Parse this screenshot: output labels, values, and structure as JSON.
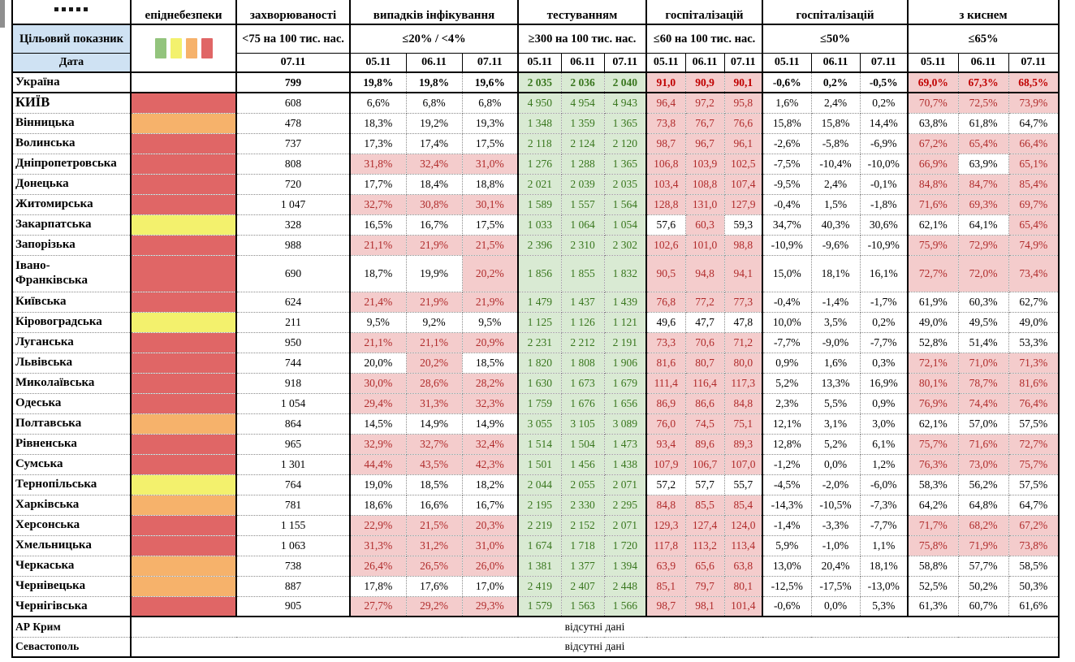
{
  "table": {
    "corner": {
      "target_label": "Цільовий показник",
      "date_label": "Дата"
    },
    "legend": {
      "group_label": "епіднебезпеки",
      "swatches": [
        {
          "name": "green",
          "color": "#93c47d"
        },
        {
          "name": "yellow",
          "color": "#f3f16d"
        },
        {
          "name": "orange",
          "color": "#f6b26b"
        },
        {
          "name": "red",
          "color": "#e06666"
        }
      ]
    },
    "danger_colors": {
      "red": "#e06666",
      "orange": "#f6b26b",
      "yellow": "#f3f16d"
    },
    "status_colors": {
      "alert_bg": "#f4cccc",
      "alert_text": "#b02b2b",
      "ok_bg": "#d9ead3",
      "ok_text": "#38761d",
      "header_bg": "#cfe2f3"
    },
    "groups": [
      {
        "key": "morbidity",
        "label": "захворюваності",
        "target": "<75 на 100 тис. нас.",
        "dates": [
          "07.11"
        ]
      },
      {
        "key": "infection",
        "label": "випадків інфікування",
        "target": "≤20% / <4%",
        "dates": [
          "05.11",
          "06.11",
          "07.11"
        ],
        "alert_above": 20
      },
      {
        "key": "testing",
        "label": "тестуванням",
        "target": "≥300 на 100 тис. нас.",
        "dates": [
          "05.11",
          "06.11",
          "07.11"
        ],
        "green": true
      },
      {
        "key": "hosp_rate",
        "label": "госпіталізацій",
        "target": "≤60 на 100 тис. нас.",
        "dates": [
          "05.11",
          "06.11",
          "07.11"
        ],
        "alert_above": 60
      },
      {
        "key": "hosp_change",
        "label": "госпіталізацій",
        "target": "≤50%",
        "dates": [
          "05.11",
          "06.11",
          "07.11"
        ]
      },
      {
        "key": "oxygen",
        "label": "з киснем",
        "target": "≤65%",
        "dates": [
          "05.11",
          "06.11",
          "07.11"
        ],
        "alert_above": 65
      }
    ],
    "no_data_text": "відсутні дані",
    "rows": [
      {
        "name": "Україна",
        "total": true,
        "danger": null,
        "morbidity": [
          "799"
        ],
        "infection": [
          "19,8%",
          "19,8%",
          "19,6%"
        ],
        "testing": [
          "2 035",
          "2 036",
          "2 040"
        ],
        "hosp_rate": [
          "91,0",
          "90,9",
          "90,1"
        ],
        "hosp_change": [
          "-0,6%",
          "0,2%",
          "-0,5%"
        ],
        "oxygen": [
          "69,0%",
          "67,3%",
          "68,5%"
        ]
      },
      {
        "name": "КИЇВ",
        "danger": "red",
        "morbidity": [
          "608"
        ],
        "infection": [
          "6,6%",
          "6,8%",
          "6,8%"
        ],
        "testing": [
          "4 950",
          "4 954",
          "4 943"
        ],
        "hosp_rate": [
          "96,4",
          "97,2",
          "95,8"
        ],
        "hosp_change": [
          "1,6%",
          "2,4%",
          "0,2%"
        ],
        "oxygen": [
          "70,7%",
          "72,5%",
          "73,9%"
        ]
      },
      {
        "name": "Вінницька",
        "danger": "orange",
        "morbidity": [
          "478"
        ],
        "infection": [
          "18,3%",
          "19,2%",
          "19,3%"
        ],
        "testing": [
          "1 348",
          "1 359",
          "1 365"
        ],
        "hosp_rate": [
          "73,8",
          "76,7",
          "76,6"
        ],
        "hosp_change": [
          "15,8%",
          "15,8%",
          "14,4%"
        ],
        "oxygen": [
          "63,8%",
          "61,8%",
          "64,7%"
        ]
      },
      {
        "name": "Волинська",
        "danger": "red",
        "morbidity": [
          "737"
        ],
        "infection": [
          "17,3%",
          "17,4%",
          "17,5%"
        ],
        "testing": [
          "2 118",
          "2 124",
          "2 120"
        ],
        "hosp_rate": [
          "98,7",
          "96,7",
          "96,1"
        ],
        "hosp_change": [
          "-2,6%",
          "-5,8%",
          "-6,9%"
        ],
        "oxygen": [
          "67,2%",
          "65,4%",
          "66,4%"
        ]
      },
      {
        "name": "Дніпропетровська",
        "danger": "red",
        "morbidity": [
          "808"
        ],
        "infection": [
          "31,8%",
          "32,4%",
          "31,0%"
        ],
        "testing": [
          "1 276",
          "1 288",
          "1 365"
        ],
        "hosp_rate": [
          "106,8",
          "103,9",
          "102,5"
        ],
        "hosp_change": [
          "-7,5%",
          "-10,4%",
          "-10,0%"
        ],
        "oxygen": [
          "66,9%",
          "63,9%",
          "65,1%"
        ]
      },
      {
        "name": "Донецька",
        "danger": "red",
        "morbidity": [
          "720"
        ],
        "infection": [
          "17,7%",
          "18,4%",
          "18,8%"
        ],
        "testing": [
          "2 021",
          "2 039",
          "2 035"
        ],
        "hosp_rate": [
          "103,4",
          "108,8",
          "107,4"
        ],
        "hosp_change": [
          "-9,5%",
          "2,4%",
          "-0,1%"
        ],
        "oxygen": [
          "84,8%",
          "84,7%",
          "85,4%"
        ]
      },
      {
        "name": "Житомирська",
        "danger": "red",
        "morbidity": [
          "1 047"
        ],
        "infection": [
          "32,7%",
          "30,8%",
          "30,1%"
        ],
        "testing": [
          "1 589",
          "1 557",
          "1 564"
        ],
        "hosp_rate": [
          "128,8",
          "131,0",
          "127,9"
        ],
        "hosp_change": [
          "-0,4%",
          "1,5%",
          "-1,8%"
        ],
        "oxygen": [
          "71,6%",
          "69,3%",
          "69,7%"
        ]
      },
      {
        "name": "Закарпатська",
        "danger": "yellow",
        "morbidity": [
          "328"
        ],
        "infection": [
          "16,5%",
          "16,7%",
          "17,5%"
        ],
        "testing": [
          "1 033",
          "1 064",
          "1 054"
        ],
        "hosp_rate": [
          "57,6",
          "60,3",
          "59,3"
        ],
        "hosp_change": [
          "34,7%",
          "40,3%",
          "30,6%"
        ],
        "oxygen": [
          "62,1%",
          "64,1%",
          "65,4%"
        ]
      },
      {
        "name": "Запорізька",
        "danger": "red",
        "morbidity": [
          "988"
        ],
        "infection": [
          "21,1%",
          "21,9%",
          "21,5%"
        ],
        "testing": [
          "2 396",
          "2 310",
          "2 302"
        ],
        "hosp_rate": [
          "102,6",
          "101,0",
          "98,8"
        ],
        "hosp_change": [
          "-10,9%",
          "-9,6%",
          "-10,9%"
        ],
        "oxygen": [
          "75,9%",
          "72,9%",
          "74,9%"
        ]
      },
      {
        "name": "Івано-\nФранківська",
        "tall": true,
        "danger": "red",
        "morbidity": [
          "690"
        ],
        "infection": [
          "18,7%",
          "19,9%",
          "20,2%"
        ],
        "testing": [
          "1 856",
          "1 855",
          "1 832"
        ],
        "hosp_rate": [
          "90,5",
          "94,8",
          "94,1"
        ],
        "hosp_change": [
          "15,0%",
          "18,1%",
          "16,1%"
        ],
        "oxygen": [
          "72,7%",
          "72,0%",
          "73,4%"
        ]
      },
      {
        "name": "Київська",
        "danger": "red",
        "morbidity": [
          "624"
        ],
        "infection": [
          "21,4%",
          "21,9%",
          "21,9%"
        ],
        "testing": [
          "1 479",
          "1 437",
          "1 439"
        ],
        "hosp_rate": [
          "76,8",
          "77,2",
          "77,3"
        ],
        "hosp_change": [
          "-0,4%",
          "-1,4%",
          "-1,7%"
        ],
        "oxygen": [
          "61,9%",
          "60,3%",
          "62,7%"
        ]
      },
      {
        "name": "Кіровоградська",
        "danger": "yellow",
        "morbidity": [
          "211"
        ],
        "infection": [
          "9,5%",
          "9,2%",
          "9,5%"
        ],
        "testing": [
          "1 125",
          "1 126",
          "1 121"
        ],
        "hosp_rate": [
          "49,6",
          "47,7",
          "47,8"
        ],
        "hosp_change": [
          "10,0%",
          "3,5%",
          "0,2%"
        ],
        "oxygen": [
          "49,0%",
          "49,5%",
          "49,0%"
        ]
      },
      {
        "name": "Луганська",
        "danger": "red",
        "morbidity": [
          "950"
        ],
        "infection": [
          "21,1%",
          "21,1%",
          "20,9%"
        ],
        "testing": [
          "2 231",
          "2 212",
          "2 191"
        ],
        "hosp_rate": [
          "73,3",
          "70,6",
          "71,2"
        ],
        "hosp_change": [
          "-7,7%",
          "-9,0%",
          "-7,7%"
        ],
        "oxygen": [
          "52,8%",
          "51,4%",
          "53,3%"
        ]
      },
      {
        "name": "Львівська",
        "danger": "red",
        "morbidity": [
          "744"
        ],
        "infection": [
          "20,0%",
          "20,2%",
          "18,5%"
        ],
        "testing": [
          "1 820",
          "1 808",
          "1 906"
        ],
        "hosp_rate": [
          "81,6",
          "80,7",
          "80,0"
        ],
        "hosp_change": [
          "0,9%",
          "1,6%",
          "0,3%"
        ],
        "oxygen": [
          "72,1%",
          "71,0%",
          "71,3%"
        ]
      },
      {
        "name": "Миколаївська",
        "danger": "red",
        "morbidity": [
          "918"
        ],
        "infection": [
          "30,0%",
          "28,6%",
          "28,2%"
        ],
        "testing": [
          "1 630",
          "1 673",
          "1 679"
        ],
        "hosp_rate": [
          "111,4",
          "116,4",
          "117,3"
        ],
        "hosp_change": [
          "5,2%",
          "13,3%",
          "16,9%"
        ],
        "oxygen": [
          "80,1%",
          "78,7%",
          "81,6%"
        ]
      },
      {
        "name": "Одеська",
        "danger": "red",
        "morbidity": [
          "1 054"
        ],
        "infection": [
          "29,4%",
          "31,3%",
          "32,3%"
        ],
        "testing": [
          "1 759",
          "1 676",
          "1 656"
        ],
        "hosp_rate": [
          "86,9",
          "86,6",
          "84,8"
        ],
        "hosp_change": [
          "2,3%",
          "5,5%",
          "0,9%"
        ],
        "oxygen": [
          "76,9%",
          "74,4%",
          "76,4%"
        ]
      },
      {
        "name": "Полтавська",
        "danger": "orange",
        "morbidity": [
          "864"
        ],
        "infection": [
          "14,5%",
          "14,9%",
          "14,9%"
        ],
        "testing": [
          "3 055",
          "3 105",
          "3 089"
        ],
        "hosp_rate": [
          "76,0",
          "74,5",
          "75,1"
        ],
        "hosp_change": [
          "12,1%",
          "3,1%",
          "3,0%"
        ],
        "oxygen": [
          "62,1%",
          "57,0%",
          "57,5%"
        ]
      },
      {
        "name": "Рівненська",
        "danger": "red",
        "morbidity": [
          "965"
        ],
        "infection": [
          "32,9%",
          "32,7%",
          "32,4%"
        ],
        "testing": [
          "1 514",
          "1 504",
          "1 473"
        ],
        "hosp_rate": [
          "93,4",
          "89,6",
          "89,3"
        ],
        "hosp_change": [
          "12,8%",
          "5,2%",
          "6,1%"
        ],
        "oxygen": [
          "75,7%",
          "71,6%",
          "72,7%"
        ]
      },
      {
        "name": "Сумська",
        "danger": "red",
        "morbidity": [
          "1 301"
        ],
        "infection": [
          "44,4%",
          "43,5%",
          "42,3%"
        ],
        "testing": [
          "1 501",
          "1 456",
          "1 438"
        ],
        "hosp_rate": [
          "107,9",
          "106,7",
          "107,0"
        ],
        "hosp_change": [
          "-1,2%",
          "0,0%",
          "1,2%"
        ],
        "oxygen": [
          "76,3%",
          "73,0%",
          "75,7%"
        ]
      },
      {
        "name": "Тернопільська",
        "danger": "yellow",
        "morbidity": [
          "764"
        ],
        "infection": [
          "19,0%",
          "18,5%",
          "18,2%"
        ],
        "testing": [
          "2 044",
          "2 055",
          "2 071"
        ],
        "hosp_rate": [
          "57,2",
          "57,7",
          "55,7"
        ],
        "hosp_change": [
          "-4,5%",
          "-2,0%",
          "-6,0%"
        ],
        "oxygen": [
          "58,3%",
          "56,2%",
          "57,5%"
        ]
      },
      {
        "name": "Харківська",
        "danger": "orange",
        "morbidity": [
          "781"
        ],
        "infection": [
          "18,6%",
          "16,6%",
          "16,7%"
        ],
        "testing": [
          "2 195",
          "2 330",
          "2 295"
        ],
        "hosp_rate": [
          "84,8",
          "85,5",
          "85,4"
        ],
        "hosp_change": [
          "-14,3%",
          "-10,5%",
          "-7,3%"
        ],
        "oxygen": [
          "64,2%",
          "64,8%",
          "64,7%"
        ]
      },
      {
        "name": "Херсонська",
        "danger": "red",
        "morbidity": [
          "1 155"
        ],
        "infection": [
          "22,9%",
          "21,5%",
          "20,3%"
        ],
        "testing": [
          "2 219",
          "2 152",
          "2 071"
        ],
        "hosp_rate": [
          "129,3",
          "127,4",
          "124,0"
        ],
        "hosp_change": [
          "-1,4%",
          "-3,3%",
          "-7,7%"
        ],
        "oxygen": [
          "71,7%",
          "68,2%",
          "67,2%"
        ]
      },
      {
        "name": "Хмельницька",
        "danger": "red",
        "morbidity": [
          "1 063"
        ],
        "infection": [
          "31,3%",
          "31,2%",
          "31,0%"
        ],
        "testing": [
          "1 674",
          "1 718",
          "1 720"
        ],
        "hosp_rate": [
          "117,8",
          "113,2",
          "113,4"
        ],
        "hosp_change": [
          "5,9%",
          "-1,0%",
          "1,1%"
        ],
        "oxygen": [
          "75,8%",
          "71,9%",
          "73,8%"
        ]
      },
      {
        "name": "Черкаська",
        "danger": "orange",
        "morbidity": [
          "738"
        ],
        "infection": [
          "26,4%",
          "26,5%",
          "26,0%"
        ],
        "testing": [
          "1 381",
          "1 377",
          "1 394"
        ],
        "hosp_rate": [
          "63,9",
          "65,6",
          "63,8"
        ],
        "hosp_change": [
          "13,0%",
          "20,4%",
          "18,1%"
        ],
        "oxygen": [
          "58,8%",
          "57,7%",
          "58,5%"
        ]
      },
      {
        "name": "Чернівецька",
        "danger": "orange",
        "morbidity": [
          "887"
        ],
        "infection": [
          "17,8%",
          "17,6%",
          "17,0%"
        ],
        "testing": [
          "2 419",
          "2 407",
          "2 448"
        ],
        "hosp_rate": [
          "85,1",
          "79,7",
          "80,1"
        ],
        "hosp_change": [
          "-12,5%",
          "-17,5%",
          "-13,0%"
        ],
        "oxygen": [
          "52,5%",
          "50,2%",
          "50,3%"
        ]
      },
      {
        "name": "Чернігівська",
        "last_region": true,
        "danger": "red",
        "morbidity": [
          "905"
        ],
        "infection": [
          "27,7%",
          "29,2%",
          "29,3%"
        ],
        "testing": [
          "1 579",
          "1 563",
          "1 566"
        ],
        "hosp_rate": [
          "98,7",
          "98,1",
          "101,4"
        ],
        "hosp_change": [
          "-0,6%",
          "0,0%",
          "5,3%"
        ],
        "oxygen": [
          "61,3%",
          "60,7%",
          "61,6%"
        ]
      },
      {
        "name": "АР Крим",
        "no_data": true
      },
      {
        "name": "Севастополь",
        "no_data": true
      }
    ]
  }
}
